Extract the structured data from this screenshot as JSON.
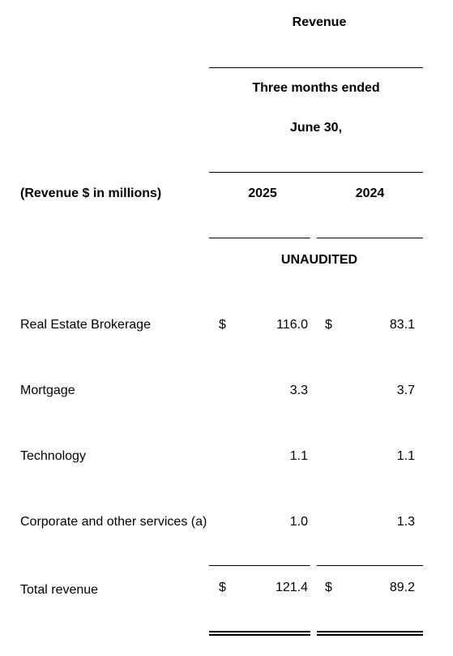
{
  "header": {
    "title": "Revenue",
    "period_line1": "Three months ended",
    "period_line2": "June 30,",
    "label_column": "(Revenue $ in millions)",
    "year_current": "2025",
    "year_prior": "2024",
    "audit_status": "UNAUDITED"
  },
  "rows": [
    {
      "label": "Real Estate Brokerage",
      "currency_current": "$",
      "value_current": "116.0",
      "currency_prior": "$",
      "value_prior": "83.1"
    },
    {
      "label": "Mortgage",
      "currency_current": "",
      "value_current": "3.3",
      "currency_prior": "",
      "value_prior": "3.7"
    },
    {
      "label": "Technology",
      "currency_current": "",
      "value_current": "1.1",
      "currency_prior": "",
      "value_prior": "1.1"
    },
    {
      "label": "Corporate and other services (a)",
      "currency_current": "",
      "value_current": "1.0",
      "currency_prior": "",
      "value_prior": "1.3"
    }
  ],
  "total": {
    "label": "Total revenue",
    "currency_current": "$",
    "value_current": "121.4",
    "currency_prior": "$",
    "value_prior": "89.2"
  }
}
